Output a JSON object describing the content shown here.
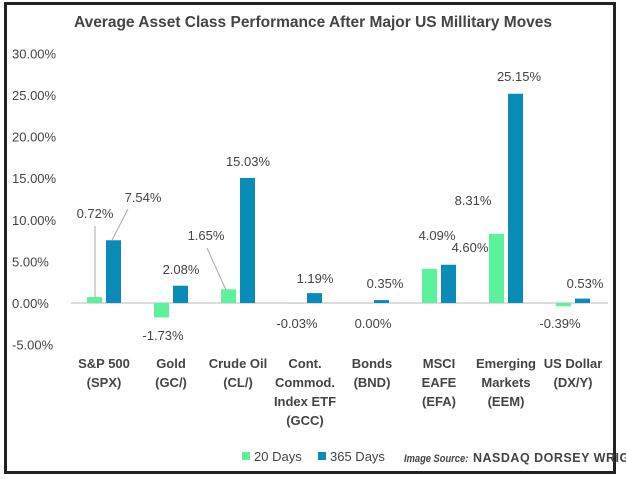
{
  "chart_data": {
    "type": "bar",
    "title": "Average Asset Class Performance After Major US Millitary Moves",
    "xlabel": "",
    "ylabel": "",
    "ylim": [
      -5,
      30
    ],
    "yticks": [
      "30.00%",
      "25.00%",
      "20.00%",
      "15.00%",
      "10.00%",
      "5.00%",
      "0.00%",
      "-5.00%"
    ],
    "ytick_values": [
      30,
      25,
      20,
      15,
      10,
      5,
      0,
      -5
    ],
    "grid": false,
    "legend_position": "bottom",
    "categories": [
      [
        "S&P 500",
        "(SPX)"
      ],
      [
        "Gold",
        "(GC/)"
      ],
      [
        "Crude Oil",
        "(CL/)"
      ],
      [
        "Cont.",
        "Commod.",
        "Index ETF",
        "(GCC)"
      ],
      [
        "Bonds",
        "(BND)"
      ],
      [
        "MSCI",
        "EAFE",
        "(EFA)"
      ],
      [
        "Emerging",
        "Markets",
        "(EEM)"
      ],
      [
        "US Dollar",
        "(DX/Y)"
      ]
    ],
    "series": [
      {
        "name": "20 Days",
        "color": "#5cf29c",
        "values": [
          0.72,
          -1.73,
          1.65,
          -0.03,
          0.0,
          4.09,
          8.31,
          -0.39
        ],
        "labels": [
          "0.72%",
          "-1.73%",
          "1.65%",
          "-0.03%",
          "0.00%",
          "4.09%",
          "8.31%",
          "-0.39%"
        ]
      },
      {
        "name": "365 Days",
        "color": "#0a8cb8",
        "values": [
          7.54,
          2.08,
          15.03,
          1.19,
          0.35,
          4.6,
          25.15,
          0.53
        ],
        "labels": [
          "7.54%",
          "2.08%",
          "15.03%",
          "1.19%",
          "0.35%",
          "4.60%",
          "25.15%",
          "0.53%"
        ]
      }
    ]
  },
  "source": {
    "prefix": "Image Source:",
    "name": "NASDAQ DORSEY WRIGHT"
  }
}
